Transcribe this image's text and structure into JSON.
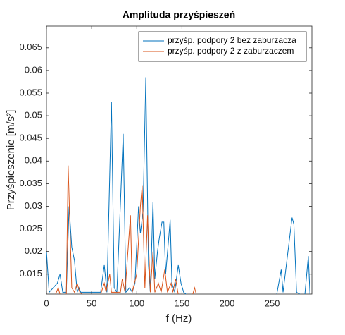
{
  "chart_data": {
    "type": "line",
    "title": "Amplituda przyśpieszeń",
    "xlabel": "f (Hz)",
    "ylabel": "Przyśpieszenie [m/s²]",
    "xlim": [
      0,
      294
    ],
    "ylim": [
      0.0106,
      0.0698
    ],
    "xticks": [
      0,
      50,
      100,
      150,
      200,
      250
    ],
    "yticks": [
      0.015,
      0.02,
      0.025,
      0.03,
      0.035,
      0.04,
      0.045,
      0.05,
      0.055,
      0.06,
      0.065
    ],
    "legend": "northeast",
    "series": [
      {
        "name": "przyśp. podpory 2 bez zaburzacza",
        "color": "#0072bd",
        "x": [
          0,
          3,
          12,
          15,
          18,
          22,
          25,
          28,
          31,
          34,
          36,
          38,
          60,
          64,
          67,
          72,
          75,
          78,
          85,
          88,
          92,
          95,
          98,
          102,
          104,
          107,
          110,
          113,
          115,
          118,
          120,
          123,
          125,
          128,
          130,
          132,
          135,
          137,
          139,
          142,
          146,
          149,
          152,
          155,
          215,
          255,
          260,
          262,
          272,
          274,
          277,
          286,
          290,
          292
        ],
        "values": [
          0.02,
          0.011,
          0.013,
          0.015,
          0.011,
          0.011,
          0.03,
          0.021,
          0.018,
          0.011,
          0.012,
          0.011,
          0.011,
          0.017,
          0.011,
          0.053,
          0.012,
          0.011,
          0.046,
          0.011,
          0.012,
          0.011,
          0.013,
          0.03,
          0.024,
          0.029,
          0.0585,
          0.017,
          0.011,
          0.031,
          0.014,
          0.02,
          0.023,
          0.0265,
          0.0265,
          0.015,
          0.022,
          0.027,
          0.013,
          0.011,
          0.017,
          0.013,
          0.011,
          0.0105,
          0.0105,
          0.0105,
          0.016,
          0.011,
          0.0275,
          0.026,
          0.011,
          0.01,
          0.019,
          0.01
        ]
      },
      {
        "name": "przyśp. podpory 2 z zaburzaczem",
        "color": "#d95319",
        "x": [
          0,
          10,
          13,
          15,
          22,
          24,
          28,
          31,
          34,
          37,
          40,
          60,
          64,
          66,
          70,
          72,
          82,
          84,
          87,
          93,
          95,
          100,
          104,
          106,
          109,
          112,
          115,
          118,
          120,
          124,
          127,
          131,
          134,
          138,
          140,
          143,
          146,
          162,
          164,
          166
        ],
        "values": [
          0.0105,
          0.0105,
          0.012,
          0.0105,
          0.0105,
          0.039,
          0.012,
          0.011,
          0.013,
          0.011,
          0.0105,
          0.0105,
          0.013,
          0.011,
          0.015,
          0.011,
          0.011,
          0.014,
          0.011,
          0.028,
          0.011,
          0.015,
          0.03,
          0.0345,
          0.012,
          0.028,
          0.011,
          0.02,
          0.011,
          0.013,
          0.011,
          0.016,
          0.011,
          0.013,
          0.011,
          0.014,
          0.0105,
          0.0105,
          0.012,
          0.0105
        ]
      }
    ]
  }
}
